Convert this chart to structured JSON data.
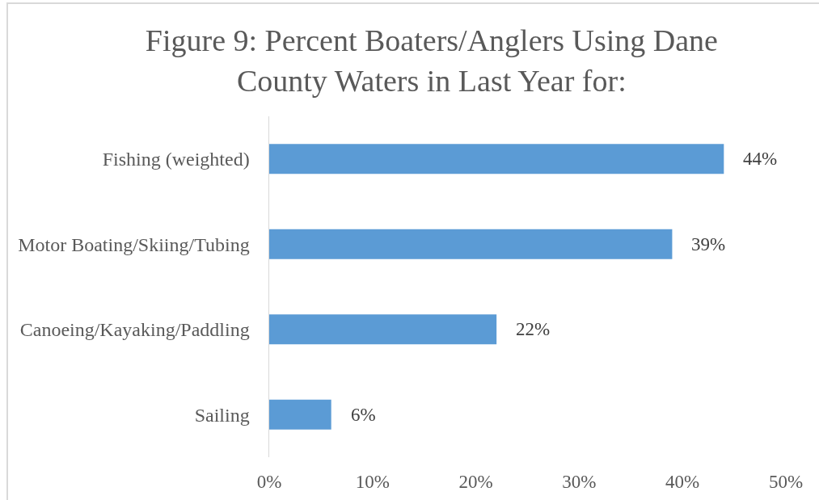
{
  "chart_data": {
    "type": "bar",
    "orientation": "horizontal",
    "title": "Figure 9: Percent Boaters/Anglers Using Dane County Waters in Last Year for:",
    "categories": [
      "Fishing (weighted)",
      "Motor Boating/Skiing/Tubing",
      "Canoeing/Kayaking/Paddling",
      "Sailing"
    ],
    "values": [
      44,
      39,
      22,
      6
    ],
    "value_labels": [
      "44%",
      "39%",
      "22%",
      "6%"
    ],
    "color": "#5b9bd5",
    "xlim": [
      0,
      50
    ],
    "xticks": [
      {
        "value": 0,
        "label": "0%"
      },
      {
        "value": 10,
        "label": "10%"
      },
      {
        "value": 20,
        "label": "20%"
      },
      {
        "value": 30,
        "label": "30%"
      },
      {
        "value": 40,
        "label": "40%"
      },
      {
        "value": 50,
        "label": "50%"
      }
    ],
    "grid": false,
    "legend": false
  }
}
